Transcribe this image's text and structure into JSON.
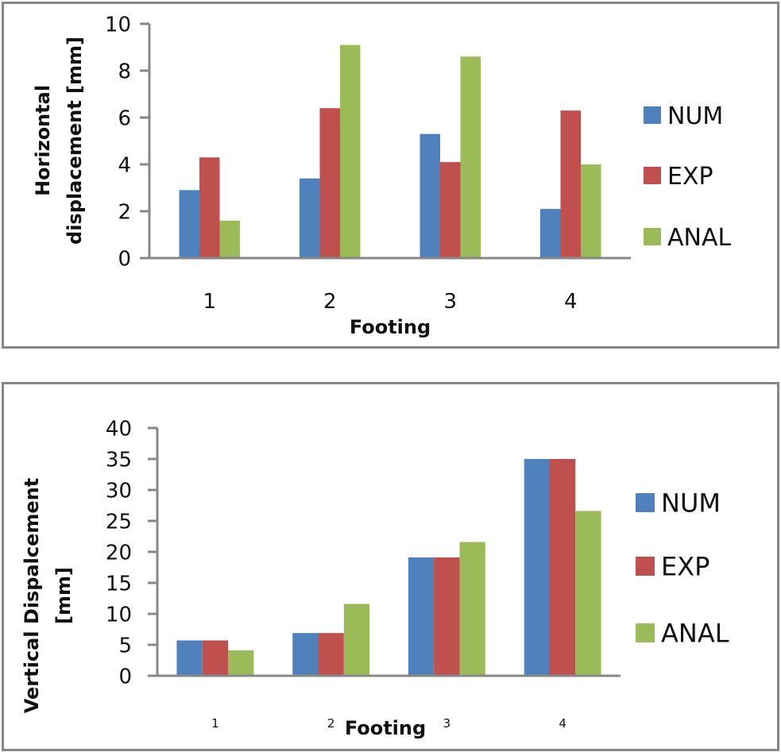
{
  "chart_data": [
    {
      "type": "bar",
      "title": "",
      "xlabel": "Footing",
      "ylabel": "Horizontal displacement [mm]",
      "ylabel_lines": [
        "Horizontal",
        "displacement [mm]"
      ],
      "categories": [
        "1",
        "2",
        "3",
        "4"
      ],
      "ylim": [
        0,
        10
      ],
      "yticks": [
        0,
        2,
        4,
        6,
        8,
        10
      ],
      "grid": false,
      "legend": "right",
      "series": [
        {
          "name": "NUM",
          "color": "#4F81BD",
          "values": [
            2.9,
            3.4,
            5.3,
            2.1
          ]
        },
        {
          "name": "EXP",
          "color": "#C0504D",
          "values": [
            4.3,
            6.4,
            4.1,
            6.3
          ]
        },
        {
          "name": "ANAL",
          "color": "#9BBB59",
          "values": [
            1.6,
            9.1,
            8.6,
            4.0
          ]
        }
      ]
    },
    {
      "type": "bar",
      "title": "",
      "xlabel": "Footing",
      "ylabel": "Vertical Dispalcement [mm]",
      "ylabel_lines": [
        "Vertical Dispalcement",
        "[mm]"
      ],
      "categories": [
        "1",
        "2",
        "3",
        "4"
      ],
      "ylim": [
        0,
        40
      ],
      "yticks": [
        0,
        5,
        10,
        15,
        20,
        25,
        30,
        35,
        40
      ],
      "grid": false,
      "legend": "right",
      "series": [
        {
          "name": "NUM",
          "color": "#4F81BD",
          "values": [
            5.7,
            6.9,
            19.1,
            35.0
          ]
        },
        {
          "name": "EXP",
          "color": "#C0504D",
          "values": [
            5.7,
            6.9,
            19.1,
            35.0
          ]
        },
        {
          "name": "ANAL",
          "color": "#9BBB59",
          "values": [
            4.1,
            11.6,
            21.6,
            26.6
          ]
        }
      ]
    }
  ]
}
